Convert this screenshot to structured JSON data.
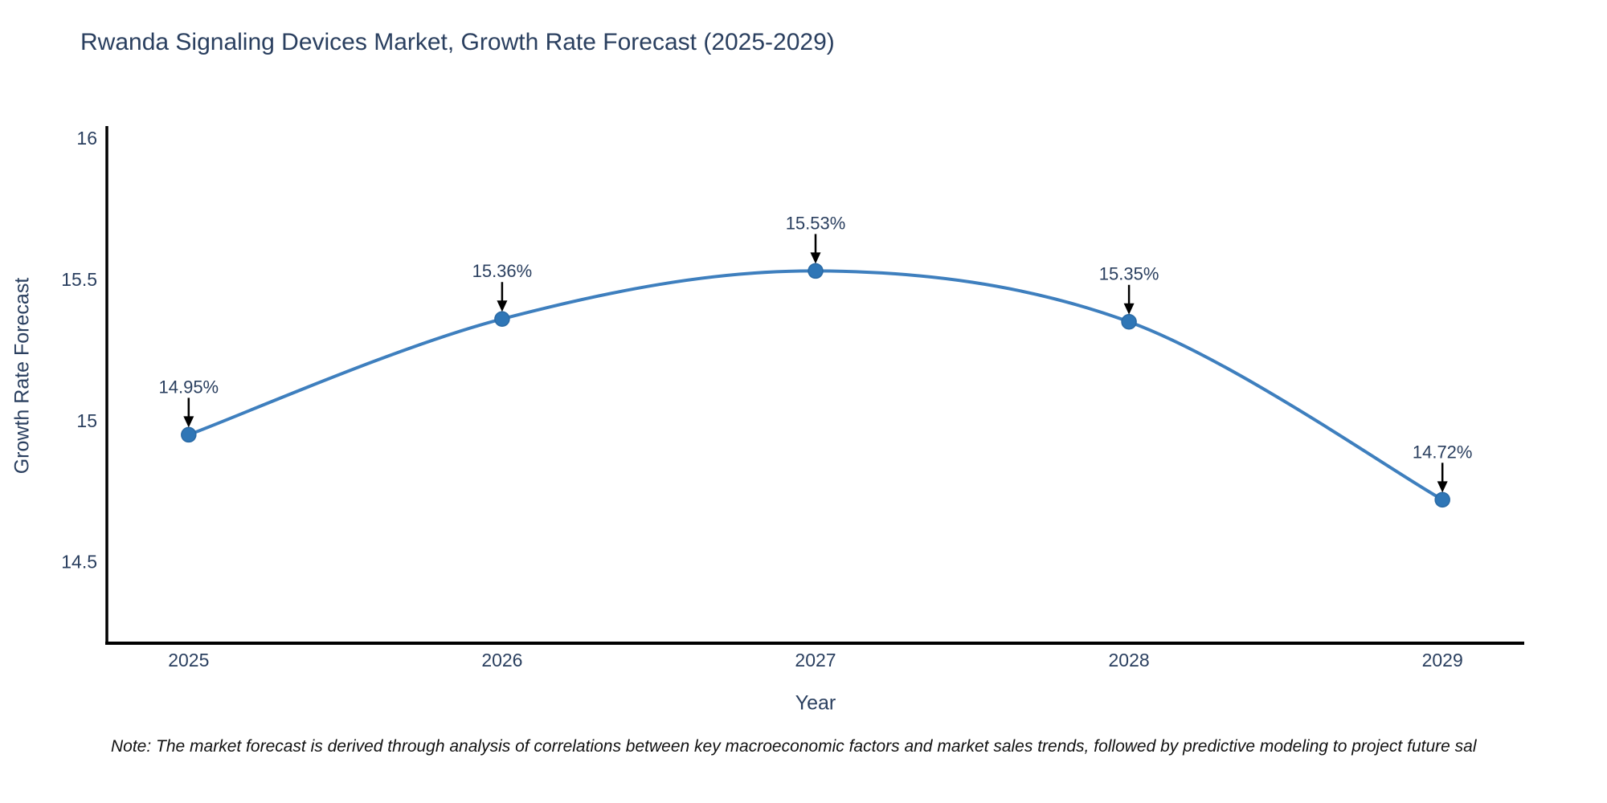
{
  "title": "Rwanda Signaling Devices Market, Growth Rate Forecast (2025-2029)",
  "note": "Note: The market forecast is derived through analysis of correlations between key macroeconomic factors and market sales trends, followed by predictive modeling to project future sal",
  "chart_data": {
    "type": "line",
    "title": "Rwanda Signaling Devices Market, Growth Rate Forecast (2025-2029)",
    "xlabel": "Year",
    "ylabel": "Growth Rate Forecast",
    "x": [
      2025,
      2026,
      2027,
      2028,
      2029
    ],
    "values": [
      14.95,
      15.36,
      15.53,
      15.35,
      14.72
    ],
    "point_labels": [
      "14.95%",
      "15.36%",
      "15.53%",
      "15.35%",
      "14.72%"
    ],
    "xtick_labels": [
      "2025",
      "2026",
      "2027",
      "2028",
      "2029"
    ],
    "yticks": [
      14.5,
      15,
      15.5,
      16
    ],
    "ytick_labels": [
      "14.5",
      "15",
      "15.5",
      "16"
    ],
    "xlim": [
      2024.739,
      2029.261
    ],
    "ylim": [
      14.212,
      16.043
    ],
    "grid": false,
    "legend": false,
    "line_shape": "spline",
    "line_color": "#3e7fbe",
    "marker_color": "#2f76b6",
    "marker_edge_color": "#2a6aa5",
    "arrow_color": "#000000",
    "text_color": "#2a3f5f",
    "axis_color": "#000000"
  }
}
